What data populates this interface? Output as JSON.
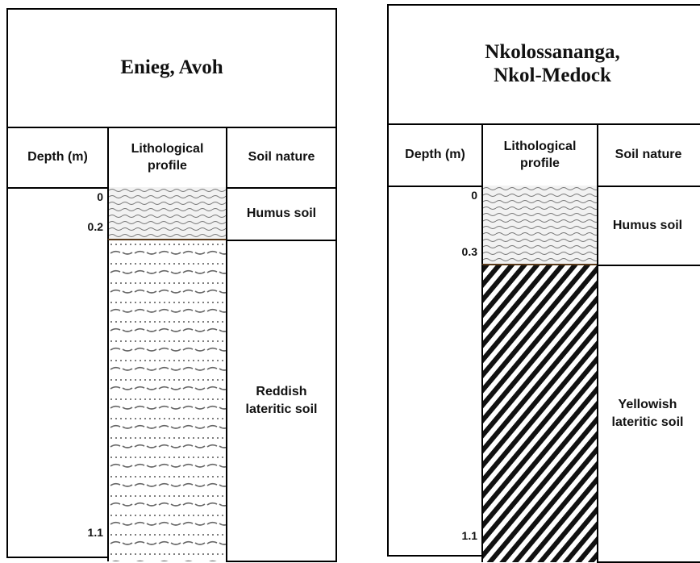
{
  "panels": [
    {
      "title": "Enieg, Avoh",
      "headers": [
        "Depth (m)",
        "Lithological profile",
        "Soil nature"
      ],
      "depths": [
        0,
        0.2,
        1.1
      ],
      "layers": [
        "Humus soil",
        "Reddish\nlateritic soil"
      ]
    },
    {
      "title": "Nkolossananga,\nNkol-Medock",
      "headers": [
        "Depth (m)",
        "Lithological profile",
        "Soil nature"
      ],
      "depths": [
        0,
        0.3,
        1.1
      ],
      "layers": [
        "Humus soil",
        "Yellowish\nlateritic soil"
      ]
    }
  ]
}
